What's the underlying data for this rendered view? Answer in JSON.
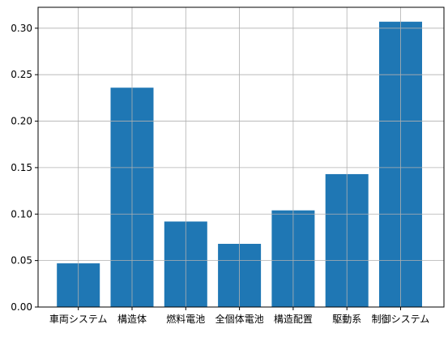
{
  "chart_data": {
    "type": "bar",
    "title": "",
    "xlabel": "",
    "ylabel": "",
    "categories": [
      "車両システム",
      "構造体",
      "燃料電池",
      "全個体電池",
      "構造配置",
      "駆動系",
      "制御システム"
    ],
    "values": [
      0.047,
      0.236,
      0.092,
      0.068,
      0.104,
      0.143,
      0.307
    ],
    "ylim": [
      0,
      0.3225
    ],
    "yticks": [
      0.0,
      0.05,
      0.1,
      0.15,
      0.2,
      0.25,
      0.3
    ],
    "ytick_labels": [
      "0.00",
      "0.05",
      "0.10",
      "0.15",
      "0.20",
      "0.25",
      "0.30"
    ],
    "grid": true,
    "bar_color": "#1f77b4",
    "grid_color": "#b0b0b0"
  }
}
